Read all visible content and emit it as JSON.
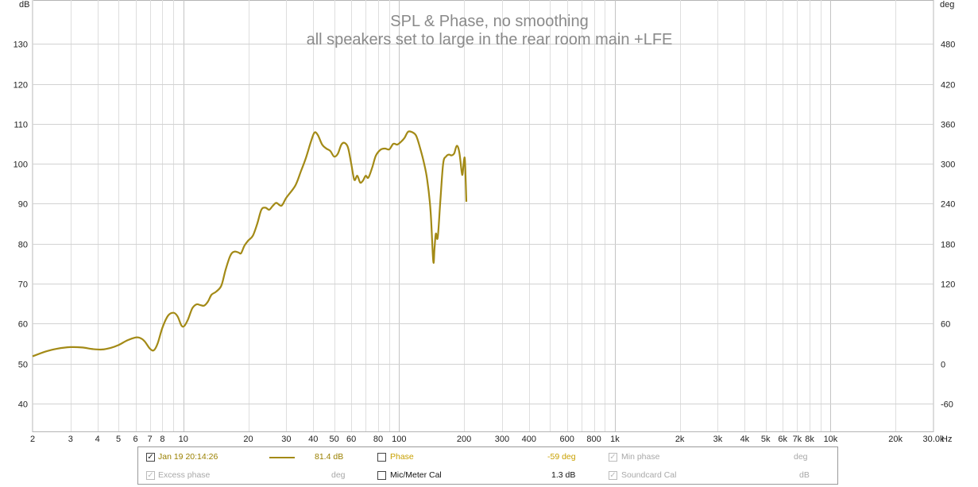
{
  "chart_data": {
    "type": "line",
    "title": "SPL & Phase, no smoothing",
    "subtitle": "all speakers set to large in the rear room main +LFE",
    "x_scale": "log",
    "xlim": [
      2,
      30000
    ],
    "x_unit": "Hz",
    "x_ticks": [
      {
        "v": 2,
        "t": "2"
      },
      {
        "v": 3,
        "t": "3"
      },
      {
        "v": 4,
        "t": "4"
      },
      {
        "v": 5,
        "t": "5"
      },
      {
        "v": 6,
        "t": "6"
      },
      {
        "v": 7,
        "t": "7"
      },
      {
        "v": 8,
        "t": "8"
      },
      {
        "v": 10,
        "t": "10"
      },
      {
        "v": 20,
        "t": "20"
      },
      {
        "v": 30,
        "t": "30"
      },
      {
        "v": 40,
        "t": "40"
      },
      {
        "v": 50,
        "t": "50"
      },
      {
        "v": 60,
        "t": "60"
      },
      {
        "v": 80,
        "t": "80"
      },
      {
        "v": 100,
        "t": "100"
      },
      {
        "v": 200,
        "t": "200"
      },
      {
        "v": 300,
        "t": "300"
      },
      {
        "v": 400,
        "t": "400"
      },
      {
        "v": 600,
        "t": "600"
      },
      {
        "v": 800,
        "t": "800"
      },
      {
        "v": 1000,
        "t": "1k"
      },
      {
        "v": 2000,
        "t": "2k"
      },
      {
        "v": 3000,
        "t": "3k"
      },
      {
        "v": 4000,
        "t": "4k"
      },
      {
        "v": 5000,
        "t": "5k"
      },
      {
        "v": 6000,
        "t": "6k"
      },
      {
        "v": 7000,
        "t": "7k"
      },
      {
        "v": 8000,
        "t": "8k"
      },
      {
        "v": 10000,
        "t": "10k"
      },
      {
        "v": 20000,
        "t": "20k"
      },
      {
        "v": 30000,
        "t": "30.0k"
      }
    ],
    "y_left_label": "dB",
    "ylim_left": [
      33,
      141
    ],
    "y_left_ticks": [
      40,
      50,
      60,
      70,
      80,
      90,
      100,
      110,
      120,
      130
    ],
    "y_right_label": "deg",
    "y_right_ticks": [
      -60,
      0,
      60,
      120,
      180,
      240,
      300,
      360,
      420,
      480
    ],
    "grid": true,
    "series": [
      {
        "name": "Jan 19 20:14:26",
        "color": "#a38a16",
        "points": [
          [
            2,
            51.8
          ],
          [
            2.3,
            53
          ],
          [
            2.6,
            53.7
          ],
          [
            3,
            54.1
          ],
          [
            3.4,
            54
          ],
          [
            3.8,
            53.6
          ],
          [
            4.2,
            53.5
          ],
          [
            4.6,
            53.9
          ],
          [
            5,
            54.6
          ],
          [
            5.5,
            55.8
          ],
          [
            6,
            56.5
          ],
          [
            6.3,
            56.4
          ],
          [
            6.6,
            55.6
          ],
          [
            7,
            53.7
          ],
          [
            7.3,
            53.3
          ],
          [
            7.6,
            55
          ],
          [
            8,
            59
          ],
          [
            8.5,
            62
          ],
          [
            9,
            62.7
          ],
          [
            9.4,
            61.8
          ],
          [
            9.8,
            59.5
          ],
          [
            10.1,
            59.4
          ],
          [
            10.5,
            61
          ],
          [
            11,
            63.8
          ],
          [
            11.5,
            64.8
          ],
          [
            12,
            64.6
          ],
          [
            12.5,
            64.5
          ],
          [
            13,
            65.5
          ],
          [
            13.5,
            67.2
          ],
          [
            14.2,
            68
          ],
          [
            15,
            69.5
          ],
          [
            15.7,
            73.5
          ],
          [
            16.5,
            77
          ],
          [
            17.2,
            78
          ],
          [
            18,
            77.8
          ],
          [
            18.5,
            77.6
          ],
          [
            19.2,
            79.5
          ],
          [
            20,
            80.8
          ],
          [
            21,
            82
          ],
          [
            22,
            85
          ],
          [
            23,
            88.5
          ],
          [
            24,
            89
          ],
          [
            25,
            88.5
          ],
          [
            26,
            89.5
          ],
          [
            27,
            90.2
          ],
          [
            28.5,
            89.5
          ],
          [
            30,
            91.5
          ],
          [
            33,
            94.5
          ],
          [
            35,
            98
          ],
          [
            37,
            101.5
          ],
          [
            39,
            105.5
          ],
          [
            40.5,
            107.8
          ],
          [
            42,
            107.2
          ],
          [
            44,
            104.8
          ],
          [
            46,
            103.8
          ],
          [
            48,
            103.2
          ],
          [
            50,
            101.8
          ],
          [
            52,
            102.5
          ],
          [
            54,
            104.8
          ],
          [
            56,
            105.2
          ],
          [
            58,
            104
          ],
          [
            60,
            100
          ],
          [
            62,
            96
          ],
          [
            64,
            97
          ],
          [
            66,
            95.3
          ],
          [
            68,
            95.8
          ],
          [
            70,
            97
          ],
          [
            72,
            96.5
          ],
          [
            75,
            99
          ],
          [
            78,
            102
          ],
          [
            82,
            103.5
          ],
          [
            86,
            103.8
          ],
          [
            90,
            103.6
          ],
          [
            94,
            105
          ],
          [
            98,
            104.8
          ],
          [
            102,
            105.5
          ],
          [
            106,
            106.5
          ],
          [
            110,
            108
          ],
          [
            115,
            107.9
          ],
          [
            120,
            107
          ],
          [
            125,
            104
          ],
          [
            130,
            100.5
          ],
          [
            135,
            96
          ],
          [
            140,
            88
          ],
          [
            144,
            75.5
          ],
          [
            146,
            79
          ],
          [
            148,
            82.5
          ],
          [
            151,
            81.5
          ],
          [
            155,
            90
          ],
          [
            160,
            100
          ],
          [
            165,
            101.8
          ],
          [
            170,
            102.3
          ],
          [
            175,
            102.1
          ],
          [
            180,
            102.6
          ],
          [
            185,
            104.5
          ],
          [
            190,
            103
          ],
          [
            195,
            98
          ],
          [
            197,
            97.5
          ],
          [
            200,
            101
          ],
          [
            202,
            100.5
          ],
          [
            205,
            90.5
          ]
        ]
      }
    ]
  },
  "legend": {
    "trace_name": "Jan 19 20:14:26",
    "trace_value": "81.4 dB",
    "phase_label": "Phase",
    "phase_value": "-59 deg",
    "min_phase_label": "Min phase",
    "min_phase_unit": "deg",
    "excess_phase_label": "Excess phase",
    "excess_phase_unit": "deg",
    "mic_cal_label": "Mic/Meter Cal",
    "mic_cal_value": "1.3 dB",
    "soundcard_cal_label": "Soundcard Cal",
    "soundcard_cal_unit": "dB",
    "check_mark": "✓"
  }
}
